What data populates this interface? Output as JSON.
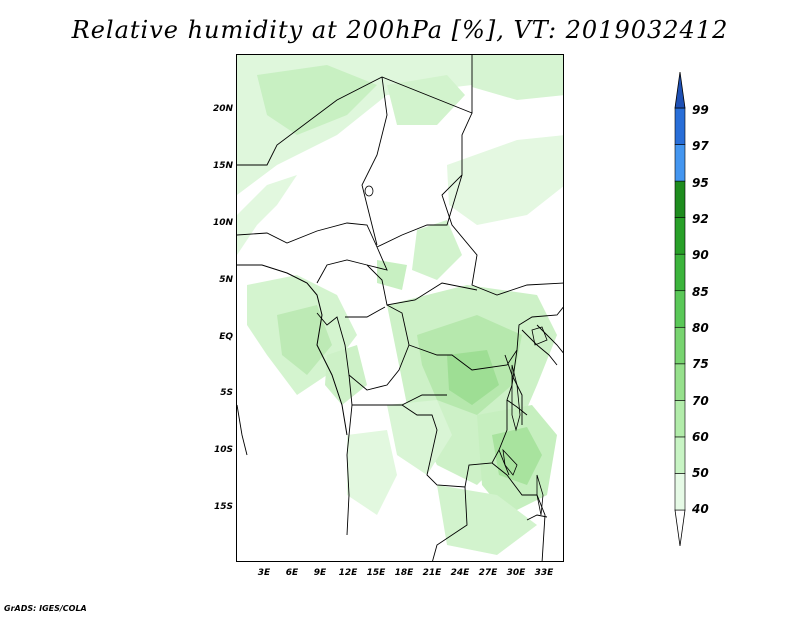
{
  "title": "Relative humidity at 200hPa [%], VT: 2019032412",
  "footer": "GrADS: IGES/COLA",
  "map": {
    "lat_labels": [
      "20N",
      "15N",
      "10N",
      "5N",
      "EQ",
      "5S",
      "10S",
      "15S"
    ],
    "lon_labels": [
      "3E",
      "6E",
      "9E",
      "12E",
      "15E",
      "18E",
      "21E",
      "24E",
      "27E",
      "30E",
      "33E"
    ]
  },
  "colorbar": {
    "levels": [
      "40",
      "50",
      "60",
      "70",
      "75",
      "80",
      "85",
      "90",
      "92",
      "95",
      "97",
      "99"
    ],
    "colors": [
      "#ffffff",
      "#e6fae6",
      "#c8f4c4",
      "#b2ecaa",
      "#96e08c",
      "#78d470",
      "#5ac858",
      "#3cb43c",
      "#28a028",
      "#1e8c1e",
      "#4496f0",
      "#286ed8",
      "#1e50b4"
    ]
  }
}
